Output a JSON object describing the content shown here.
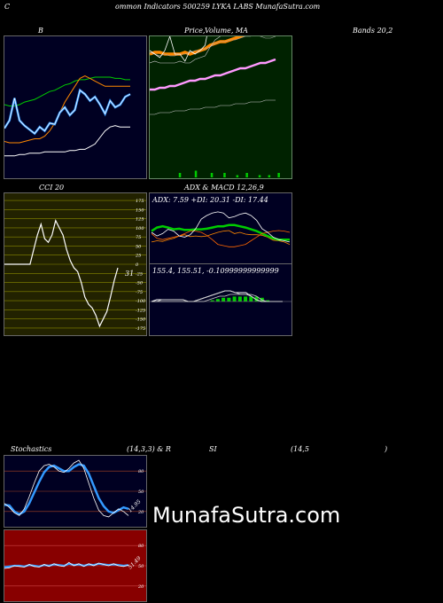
{
  "header": {
    "part1": "C",
    "part2": "ommon  Indicators 500259 LYKA LABS MunafaSutra.com"
  },
  "labels": {
    "bollinger_b": "B",
    "price_ma_a": "Price,",
    "price_ma_b": "Volume, MA",
    "price_ma_c": "Bands 20,2",
    "cci": "CCI 20",
    "adx_macd": "ADX  & MACD 12,26,9",
    "adx_values": "ADX: 7.59  +DI: 20.31  -DI: 17.44",
    "macd_values": "155.4,   155.51,   -0.10999999999999",
    "cci_value": "31",
    "stoch": "Stochastics",
    "stoch_params": "(14,3,3) & R",
    "rsi": "SI",
    "rsi_params": "(14,5",
    "rsi_close": ")",
    "stoch_curr": "14.95",
    "rsi_curr": "51.49",
    "watermark": "MunafaSutra.com"
  },
  "colors": {
    "navy": "#000022",
    "green_bg": "#002200",
    "olive_bg": "#222200",
    "red_bg": "#880000",
    "blue": "#3399ff",
    "orange": "#ff8800",
    "pink": "#ff99ff",
    "grid_olive": "#888800",
    "green_line": "#00cc00"
  },
  "chart_data": [
    {
      "type": "line",
      "panel": "bollinger-b",
      "ylim": [
        0,
        100
      ],
      "series": [
        {
          "values": [
            52,
            51,
            51,
            52,
            54,
            55,
            56,
            58,
            60,
            62,
            63,
            65,
            67,
            68,
            70,
            71,
            71,
            72,
            73,
            73,
            73,
            73,
            72,
            72,
            71,
            71
          ]
        },
        {
          "values": [
            24,
            23,
            23,
            23,
            24,
            25,
            26,
            26,
            28,
            32,
            38,
            46,
            54,
            60,
            66,
            72,
            74,
            72,
            70,
            68,
            66,
            66,
            66,
            66,
            66,
            66
          ]
        },
        {
          "values": [
            13,
            13,
            13,
            14,
            14,
            15,
            15,
            15,
            16,
            16,
            16,
            16,
            16,
            17,
            17,
            18,
            18,
            20,
            22,
            27,
            32,
            35,
            36,
            35,
            35,
            35
          ]
        },
        {
          "values": [
            34,
            40,
            57,
            40,
            36,
            33,
            30,
            35,
            32,
            38,
            37,
            46,
            50,
            44,
            48,
            63,
            60,
            55,
            58,
            52,
            45,
            55,
            50,
            52,
            58,
            60
          ]
        }
      ]
    },
    {
      "type": "line",
      "panel": "price-volume-ma",
      "ylim": [
        0,
        100
      ],
      "series": [
        {
          "values": [
            60,
            61,
            61,
            60,
            60,
            60,
            60,
            61,
            60,
            61,
            62,
            63,
            65,
            66,
            67,
            67,
            68,
            69,
            70,
            71,
            71,
            72,
            73,
            73,
            74,
            75
          ]
        },
        {
          "values": [
            40,
            40,
            41,
            41,
            42,
            42,
            43,
            44,
            45,
            45,
            46,
            46,
            47,
            48,
            48,
            49,
            50,
            51,
            52,
            52,
            53,
            54,
            55,
            55,
            56,
            57
          ]
        },
        {
          "values": [
            26,
            26,
            27,
            27,
            27,
            28,
            28,
            28,
            29,
            29,
            29,
            30,
            30,
            30,
            31,
            31,
            31,
            32,
            32,
            32,
            33,
            33,
            33,
            34,
            34,
            34
          ]
        },
        {
          "values": [
            61,
            60,
            59,
            60,
            59,
            59,
            60,
            60,
            61,
            62,
            62,
            63,
            64,
            66,
            67,
            67,
            68,
            68,
            69,
            70,
            70,
            71,
            70,
            69,
            69,
            70
          ]
        },
        {
          "values": [
            74,
            74,
            74,
            73,
            74,
            73,
            74,
            74,
            76,
            75,
            76,
            78,
            81,
            82,
            83,
            85,
            86,
            87,
            87,
            87,
            88,
            89,
            89,
            89,
            88,
            88
          ]
        },
        {
          "values": [
            55,
            56,
            55,
            55,
            55,
            55,
            56,
            55,
            55,
            57,
            58,
            59,
            64,
            68,
            70,
            74,
            75,
            76,
            77,
            78,
            79,
            80,
            80,
            80,
            79,
            79
          ]
        },
        {
          "values": [
            62,
            60,
            58,
            62,
            70,
            60,
            60,
            56,
            62,
            60,
            62,
            65,
            80,
            76,
            88,
            84,
            92,
            82,
            92,
            80,
            88,
            90,
            86,
            86,
            86,
            90
          ]
        }
      ],
      "volume": [
        0,
        0,
        0,
        0,
        0,
        0,
        0,
        0,
        2,
        0,
        0,
        0,
        0,
        3,
        0,
        0,
        0,
        0,
        2,
        0,
        0,
        0,
        2,
        0,
        0,
        0,
        1,
        0,
        0,
        2,
        0,
        0,
        0,
        1,
        0,
        0,
        1,
        0,
        0,
        2,
        0,
        0
      ]
    },
    {
      "type": "line",
      "panel": "cci",
      "yticks": [
        175,
        150,
        125,
        100,
        75,
        50,
        25,
        0,
        -25,
        -50,
        -75,
        -100,
        -125,
        -150,
        -175
      ],
      "ylim": [
        -180,
        180
      ],
      "series": [
        {
          "values": [
            0,
            0,
            0,
            0,
            0,
            0,
            0,
            0,
            40,
            80,
            110,
            70,
            60,
            80,
            120,
            100,
            80,
            40,
            10,
            -10,
            -20,
            -50,
            -90,
            -110,
            -120,
            -140,
            -170,
            -150,
            -130,
            -90,
            -45,
            -10
          ]
        }
      ],
      "current": 31
    },
    {
      "type": "line",
      "panel": "adx",
      "ylim": [
        0,
        100
      ],
      "series": [
        {
          "values": [
            34,
            36,
            35,
            38,
            40,
            44,
            46,
            43,
            44,
            43,
            44,
            47,
            50,
            52,
            53,
            48,
            50,
            47,
            46,
            46,
            45,
            42,
            37,
            36,
            34,
            30
          ]
        },
        {
          "values": [
            52,
            58,
            60,
            58,
            55,
            56,
            54,
            54,
            55,
            55,
            56,
            58,
            60,
            60,
            62,
            62,
            60,
            58,
            55,
            52,
            48,
            44,
            40,
            38,
            38,
            38
          ]
        },
        {
          "values": [
            48,
            40,
            38,
            40,
            42,
            44,
            48,
            52,
            52,
            50,
            45,
            38,
            30,
            28,
            26,
            26,
            28,
            30,
            36,
            42,
            48,
            50,
            52,
            53,
            52,
            50
          ]
        },
        {
          "values": [
            50,
            44,
            48,
            55,
            52,
            44,
            42,
            46,
            56,
            72,
            78,
            82,
            84,
            82,
            74,
            76,
            80,
            82,
            78,
            70,
            56,
            50,
            42,
            38,
            36,
            34
          ]
        }
      ]
    },
    {
      "type": "area",
      "panel": "macd",
      "ylim": [
        -10,
        10
      ],
      "series": [
        {
          "values": [
            0,
            1,
            1,
            1,
            1,
            1,
            1,
            0,
            0,
            1,
            2,
            3,
            4,
            5,
            6,
            6,
            5,
            5,
            5,
            3,
            1,
            0,
            0,
            0,
            0,
            0
          ]
        },
        {
          "values": [
            0,
            0,
            1,
            1,
            1,
            1,
            1,
            0,
            0,
            1,
            2,
            3,
            4,
            5,
            6,
            6,
            5,
            4,
            4,
            3,
            1,
            0,
            0,
            0,
            0,
            0
          ]
        },
        {
          "values": [
            0,
            0,
            0,
            0,
            0,
            0,
            0,
            0,
            0,
            0,
            0,
            1,
            2,
            3,
            3,
            4,
            4,
            4,
            4,
            4,
            3,
            1,
            0,
            0,
            0,
            0
          ]
        }
      ]
    },
    {
      "type": "line",
      "panel": "stochastics",
      "ylim": [
        0,
        100
      ],
      "yticks": [
        80,
        50,
        20
      ],
      "series": [
        {
          "values": [
            30,
            29,
            20,
            16,
            20,
            32,
            48,
            64,
            78,
            86,
            88,
            84,
            80,
            80,
            86,
            90,
            88,
            76,
            58,
            40,
            28,
            20,
            18,
            22,
            26,
            24
          ]
        },
        {
          "values": [
            32,
            26,
            18,
            14,
            24,
            42,
            62,
            80,
            88,
            90,
            86,
            80,
            78,
            84,
            92,
            96,
            84,
            62,
            40,
            22,
            14,
            12,
            18,
            24,
            20,
            14
          ]
        }
      ],
      "current": 14.95
    },
    {
      "type": "line",
      "panel": "rsi",
      "ylim": [
        0,
        100
      ],
      "yticks": [
        80,
        50,
        20
      ],
      "series": [
        {
          "values": [
            48,
            49,
            50,
            50,
            49,
            51,
            50,
            49,
            51,
            50,
            52,
            51,
            50,
            53,
            51,
            52,
            50,
            52,
            51,
            53,
            52,
            51,
            52,
            51,
            50,
            51
          ]
        },
        {
          "values": [
            46,
            47,
            50,
            49,
            48,
            52,
            49,
            48,
            52,
            49,
            53,
            50,
            49,
            55,
            50,
            53,
            49,
            53,
            50,
            54,
            52,
            50,
            53,
            50,
            49,
            51
          ]
        }
      ],
      "current": 51.49
    }
  ]
}
